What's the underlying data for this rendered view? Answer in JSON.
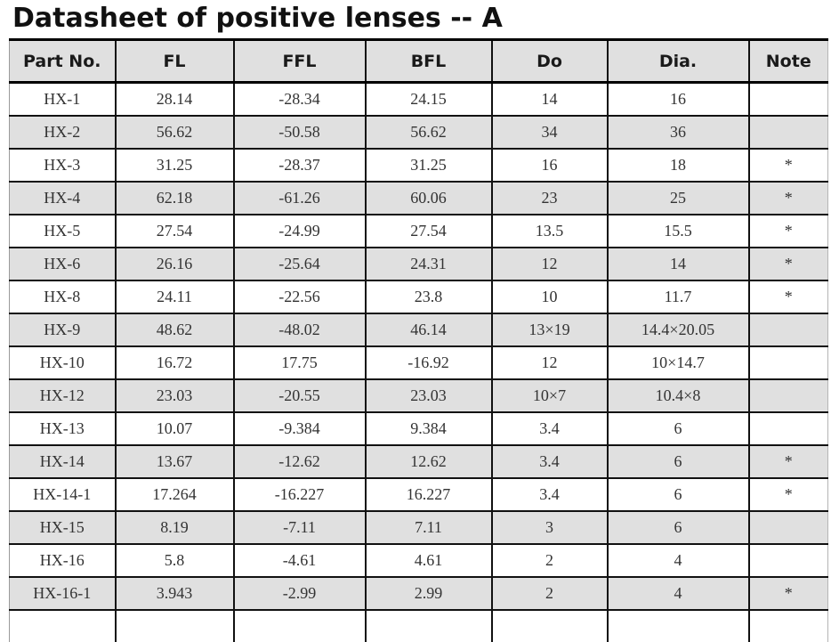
{
  "title": "Datasheet of positive lenses -- A",
  "table": {
    "columns": [
      {
        "key": "part-no",
        "label": "Part No."
      },
      {
        "key": "fl",
        "label": "FL"
      },
      {
        "key": "ffl",
        "label": "FFL"
      },
      {
        "key": "bfl",
        "label": "BFL"
      },
      {
        "key": "do",
        "label": "Do"
      },
      {
        "key": "dia",
        "label": "Dia."
      },
      {
        "key": "note",
        "label": "Note"
      }
    ],
    "rows": [
      [
        "HX-1",
        "28.14",
        "-28.34",
        "24.15",
        "14",
        "16",
        ""
      ],
      [
        "HX-2",
        "56.62",
        "-50.58",
        "56.62",
        "34",
        "36",
        ""
      ],
      [
        "HX-3",
        "31.25",
        "-28.37",
        "31.25",
        "16",
        "18",
        "*"
      ],
      [
        "HX-4",
        "62.18",
        "-61.26",
        "60.06",
        "23",
        "25",
        "*"
      ],
      [
        "HX-5",
        "27.54",
        "-24.99",
        "27.54",
        "13.5",
        "15.5",
        "*"
      ],
      [
        "HX-6",
        "26.16",
        "-25.64",
        "24.31",
        "12",
        "14",
        "*"
      ],
      [
        "HX-8",
        "24.11",
        "-22.56",
        "23.8",
        "10",
        "11.7",
        "*"
      ],
      [
        "HX-9",
        "48.62",
        "-48.02",
        "46.14",
        "13×19",
        "14.4×20.05",
        ""
      ],
      [
        "HX-10",
        "16.72",
        "17.75",
        "-16.92",
        "12",
        "10×14.7",
        ""
      ],
      [
        "HX-12",
        "23.03",
        "-20.55",
        "23.03",
        "10×7",
        "10.4×8",
        ""
      ],
      [
        "HX-13",
        "10.07",
        "-9.384",
        "9.384",
        "3.4",
        "6",
        ""
      ],
      [
        "HX-14",
        "13.67",
        "-12.62",
        "12.62",
        "3.4",
        "6",
        "*"
      ],
      [
        "HX-14-1",
        "17.264",
        "-16.227",
        "16.227",
        "3.4",
        "6",
        "*"
      ],
      [
        "HX-15",
        "8.19",
        "-7.11",
        "7.11",
        "3",
        "6",
        ""
      ],
      [
        "HX-16",
        "5.8",
        "-4.61",
        "4.61",
        "2",
        "4",
        ""
      ],
      [
        "HX-16-1",
        "3.943",
        "-2.99",
        "2.99",
        "2",
        "4",
        "*"
      ]
    ]
  },
  "colors": {
    "stripe_bg": "#e0e0e0",
    "header_bg": "#e0e0e0",
    "border": "#111111",
    "title_text": "#111111",
    "cell_text": "#333333"
  }
}
